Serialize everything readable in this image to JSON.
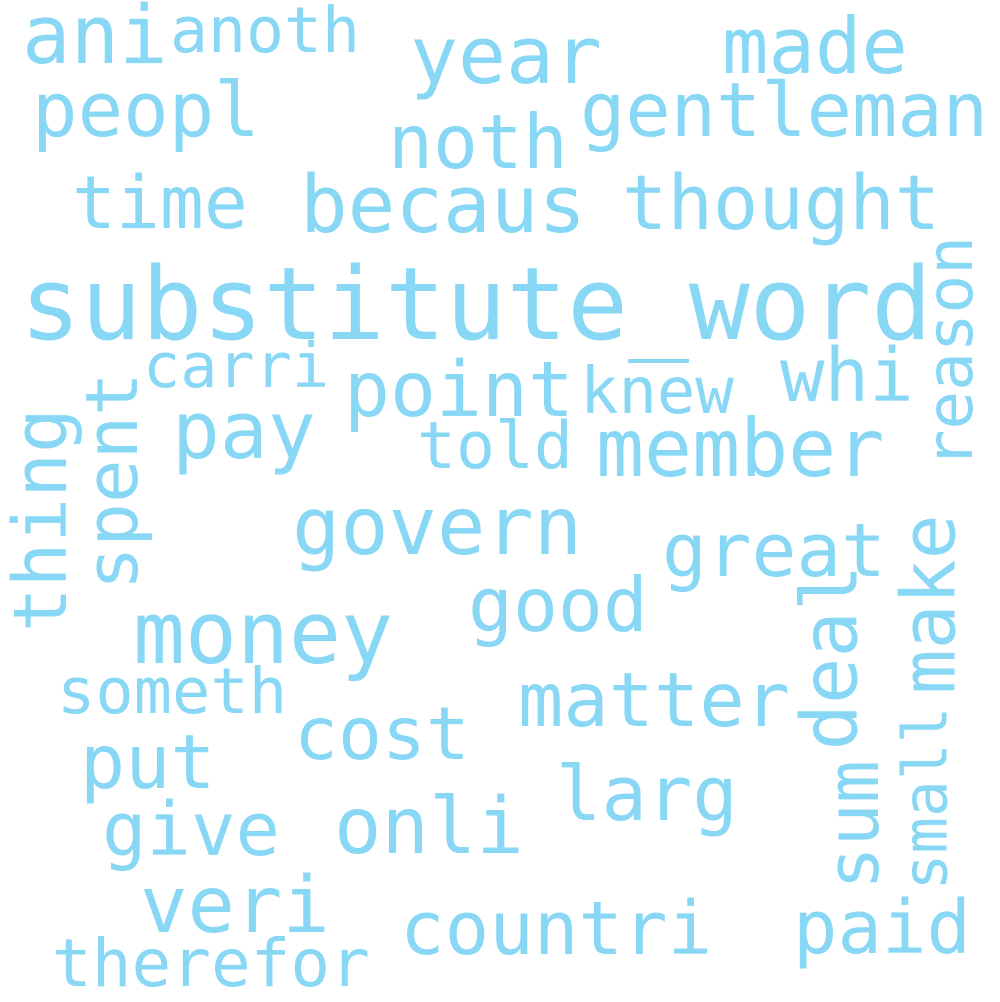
{
  "color": "#87d7f5",
  "words": [
    {
      "text": "substitute_word"
    },
    {
      "text": "becaus"
    },
    {
      "text": "thought"
    },
    {
      "text": "money"
    },
    {
      "text": "govern"
    },
    {
      "text": "member"
    },
    {
      "text": "year"
    },
    {
      "text": "gentleman"
    },
    {
      "text": "peopl"
    },
    {
      "text": "made"
    },
    {
      "text": "noth"
    },
    {
      "text": "time"
    },
    {
      "text": "pay"
    },
    {
      "text": "point"
    },
    {
      "text": "great"
    },
    {
      "text": "good"
    },
    {
      "text": "matter"
    },
    {
      "text": "cost"
    },
    {
      "text": "onli"
    },
    {
      "text": "larg"
    },
    {
      "text": "veri"
    },
    {
      "text": "countri"
    },
    {
      "text": "paid"
    },
    {
      "text": "put"
    },
    {
      "text": "give"
    },
    {
      "text": "whi"
    },
    {
      "text": "knew"
    },
    {
      "text": "told"
    },
    {
      "text": "carri"
    },
    {
      "text": "ani"
    },
    {
      "text": "anoth"
    },
    {
      "text": "someth"
    },
    {
      "text": "therefor"
    },
    {
      "text": "reason"
    },
    {
      "text": "make"
    },
    {
      "text": "deal"
    },
    {
      "text": "small"
    },
    {
      "text": "sum"
    },
    {
      "text": "spent"
    },
    {
      "text": "thing"
    }
  ]
}
